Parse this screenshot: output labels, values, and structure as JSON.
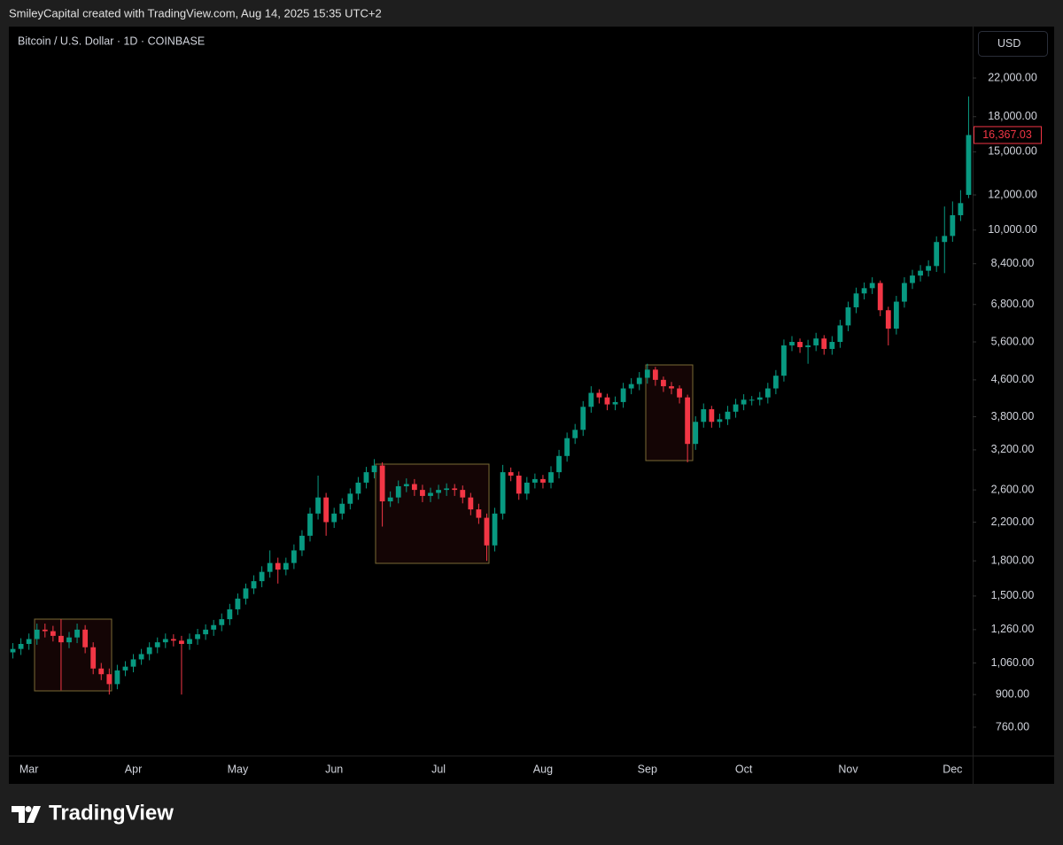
{
  "header": "SmileyCapital created with TradingView.com, Aug 14, 2025 15:35 UTC+2",
  "brand": "TradingView",
  "chart_data": {
    "type": "candlestick",
    "title": "Bitcoin / U.S. Dollar · 1D · COINBASE",
    "currency": "USD",
    "log_scale": true,
    "grid": false,
    "up_color": "#089981",
    "down_color": "#f23645",
    "ylim": [
      656,
      28720
    ],
    "yticks": [
      {
        "value": 22000,
        "label": "22,000.00"
      },
      {
        "value": 18000,
        "label": "18,000.00"
      },
      {
        "value": 15000,
        "label": "15,000.00"
      },
      {
        "value": 12000,
        "label": "12,000.00"
      },
      {
        "value": 10000,
        "label": "10,000.00"
      },
      {
        "value": 8400,
        "label": "8,400.00"
      },
      {
        "value": 6800,
        "label": "6,800.00"
      },
      {
        "value": 5600,
        "label": "5,600.00"
      },
      {
        "value": 4600,
        "label": "4,600.00"
      },
      {
        "value": 3800,
        "label": "3,800.00"
      },
      {
        "value": 3200,
        "label": "3,200.00"
      },
      {
        "value": 2600,
        "label": "2,600.00"
      },
      {
        "value": 2200,
        "label": "2,200.00"
      },
      {
        "value": 1800,
        "label": "1,800.00"
      },
      {
        "value": 1500,
        "label": "1,500.00"
      },
      {
        "value": 1260,
        "label": "1,260.00"
      },
      {
        "value": 1060,
        "label": "1,060.00"
      },
      {
        "value": 900,
        "label": "900.00"
      },
      {
        "value": 760,
        "label": "760.00"
      }
    ],
    "last_price": {
      "value": 16367.03,
      "label": "16,367.03"
    },
    "categories": [
      null,
      null,
      "Mar",
      null,
      null,
      null,
      null,
      null,
      null,
      null,
      null,
      null,
      null,
      null,
      null,
      "Apr",
      null,
      null,
      null,
      null,
      null,
      null,
      null,
      null,
      null,
      null,
      null,
      null,
      "May",
      null,
      null,
      null,
      null,
      null,
      null,
      null,
      null,
      null,
      null,
      null,
      "Jun",
      null,
      null,
      null,
      null,
      null,
      null,
      null,
      null,
      null,
      null,
      null,
      null,
      "Jul",
      null,
      null,
      null,
      null,
      null,
      null,
      null,
      null,
      null,
      null,
      null,
      null,
      "Aug",
      null,
      null,
      null,
      null,
      null,
      null,
      null,
      null,
      null,
      null,
      null,
      null,
      "Sep",
      null,
      null,
      null,
      null,
      null,
      null,
      null,
      null,
      null,
      null,
      null,
      "Oct",
      null,
      null,
      null,
      null,
      null,
      null,
      null,
      null,
      null,
      null,
      null,
      null,
      "Nov",
      null,
      null,
      null,
      null,
      null,
      null,
      null,
      null,
      null,
      null,
      null,
      null,
      "Dec",
      null,
      null
    ],
    "open": [
      1120,
      1140,
      1170,
      1200,
      1260,
      1250,
      1220,
      1180,
      1210,
      1260,
      1150,
      1030,
      1000,
      950,
      1020,
      1040,
      1080,
      1110,
      1150,
      1180,
      1200,
      1190,
      1170,
      1200,
      1230,
      1260,
      1290,
      1330,
      1400,
      1480,
      1560,
      1620,
      1700,
      1780,
      1720,
      1780,
      1900,
      2050,
      2300,
      2500,
      2200,
      2300,
      2420,
      2550,
      2700,
      2850,
      2950,
      2450,
      2500,
      2650,
      2680,
      2600,
      2520,
      2560,
      2600,
      2620,
      2600,
      2500,
      2350,
      2250,
      1950,
      2300,
      2850,
      2800,
      2550,
      2700,
      2750,
      2700,
      2850,
      3100,
      3400,
      3550,
      4000,
      4300,
      4200,
      4050,
      4100,
      4400,
      4500,
      4650,
      4850,
      4600,
      4450,
      4400,
      4200,
      3300,
      3700,
      3950,
      3700,
      3750,
      3900,
      4050,
      4150,
      4150,
      4200,
      4400,
      4700,
      5500,
      5600,
      5450,
      5500,
      5700,
      5400,
      5600,
      6100,
      6700,
      7200,
      7400,
      7600,
      6600,
      6000,
      6900,
      7600,
      7900,
      8100,
      8300,
      9400,
      9700,
      10800,
      12000
    ],
    "high": [
      1175,
      1205,
      1235,
      1300,
      1300,
      1285,
      1330,
      1245,
      1300,
      1290,
      1180,
      1060,
      1030,
      1050,
      1070,
      1110,
      1140,
      1180,
      1210,
      1235,
      1230,
      1220,
      1235,
      1265,
      1295,
      1325,
      1370,
      1440,
      1520,
      1600,
      1670,
      1750,
      1900,
      1830,
      1830,
      1960,
      2110,
      2370,
      2800,
      2560,
      2370,
      2490,
      2620,
      2780,
      2930,
      3050,
      3000,
      2580,
      2730,
      2760,
      2750,
      2670,
      2630,
      2670,
      2690,
      2680,
      2660,
      2560,
      2420,
      2300,
      2370,
      2960,
      2920,
      2860,
      2780,
      2830,
      2810,
      2940,
      3200,
      3500,
      3660,
      4120,
      4450,
      4380,
      4280,
      4220,
      4530,
      4640,
      4790,
      5000,
      4920,
      4680,
      4550,
      4470,
      4260,
      3810,
      4070,
      4020,
      3860,
      4020,
      4170,
      4270,
      4230,
      4320,
      4530,
      4840,
      5670,
      5770,
      5700,
      5660,
      5870,
      5800,
      5770,
      6280,
      6900,
      7420,
      7620,
      7830,
      7700,
      6720,
      7110,
      7830,
      8140,
      8340,
      8550,
      9680,
      11300,
      11600,
      12300,
      20000
    ],
    "low": [
      1085,
      1105,
      1135,
      1165,
      1210,
      1185,
      920,
      1145,
      1175,
      1115,
      1000,
      970,
      900,
      925,
      990,
      1010,
      1050,
      1075,
      1115,
      1145,
      1155,
      900,
      1135,
      1165,
      1195,
      1220,
      1250,
      1290,
      1360,
      1435,
      1515,
      1570,
      1650,
      1600,
      1670,
      1725,
      1845,
      1990,
      2230,
      2050,
      2135,
      2230,
      2350,
      2470,
      2620,
      2760,
      2150,
      2380,
      2425,
      2570,
      2520,
      2440,
      2440,
      2480,
      2520,
      2520,
      2425,
      2280,
      2180,
      1800,
      1890,
      2230,
      2720,
      2470,
      2470,
      2620,
      2620,
      2620,
      2760,
      3010,
      3300,
      3440,
      3880,
      4070,
      3930,
      3930,
      3980,
      4270,
      4360,
      4510,
      4460,
      4320,
      4270,
      4070,
      3000,
      3200,
      3590,
      3590,
      3590,
      3640,
      3780,
      3930,
      4030,
      4030,
      4070,
      4270,
      4560,
      5340,
      5290,
      5000,
      5340,
      5240,
      5240,
      5430,
      5920,
      6500,
      6980,
      7180,
      6400,
      5500,
      5820,
      6690,
      7370,
      7660,
      7860,
      8050,
      8000,
      9410,
      10480,
      11800
    ],
    "close": [
      1140,
      1170,
      1200,
      1260,
      1250,
      1220,
      1180,
      1210,
      1260,
      1150,
      1030,
      1000,
      950,
      1020,
      1040,
      1080,
      1110,
      1150,
      1180,
      1200,
      1190,
      1170,
      1200,
      1230,
      1260,
      1290,
      1330,
      1400,
      1480,
      1560,
      1620,
      1700,
      1780,
      1720,
      1780,
      1900,
      2050,
      2300,
      2500,
      2200,
      2300,
      2420,
      2550,
      2700,
      2850,
      2950,
      2450,
      2500,
      2650,
      2680,
      2600,
      2520,
      2560,
      2600,
      2620,
      2600,
      2500,
      2350,
      2250,
      1950,
      2300,
      2850,
      2800,
      2550,
      2700,
      2750,
      2700,
      2850,
      3100,
      3400,
      3550,
      4000,
      4300,
      4200,
      4050,
      4100,
      4400,
      4500,
      4650,
      4850,
      4600,
      4450,
      4400,
      4200,
      3300,
      3700,
      3950,
      3700,
      3750,
      3900,
      4050,
      4150,
      4150,
      4200,
      4400,
      4700,
      5500,
      5600,
      5450,
      5500,
      5700,
      5400,
      5600,
      6100,
      6700,
      7200,
      7400,
      7600,
      6600,
      6000,
      6900,
      7600,
      7900,
      8100,
      8300,
      9400,
      9700,
      10800,
      11500,
      16367.03
    ]
  }
}
